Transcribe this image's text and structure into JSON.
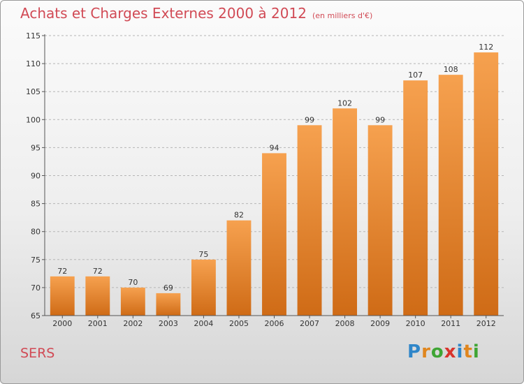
{
  "header": {
    "title": "Achats et Charges Externes 2000 à 2012",
    "subtitle": "(en milliers d'€)"
  },
  "footer": {
    "place": "SERS",
    "logo": {
      "letters": [
        "P",
        "r",
        "o",
        "x",
        "i",
        "t",
        "i"
      ],
      "colors": [
        "#2f86c9",
        "#e0861e",
        "#3fa535",
        "#d8342c",
        "#2f86c9",
        "#e0861e",
        "#3fa535"
      ]
    }
  },
  "colors": {
    "title": "#d14a55",
    "bar_light": "#f6a14f",
    "bar_dark": "#cf6b16",
    "axis": "#555555",
    "grid": "#b5b5b5"
  },
  "chart_data": {
    "type": "bar",
    "title": "Achats et Charges Externes 2000 à 2012",
    "ylabel": "(en milliers d'€)",
    "xlabel": "",
    "categories": [
      "2000",
      "2001",
      "2002",
      "2003",
      "2004",
      "2005",
      "2006",
      "2007",
      "2008",
      "2009",
      "2010",
      "2011",
      "2012"
    ],
    "values": [
      72,
      72,
      70,
      69,
      75,
      82,
      94,
      99,
      102,
      99,
      107,
      108,
      112
    ],
    "ylim": [
      65,
      115
    ],
    "yticks": [
      65,
      70,
      75,
      80,
      85,
      90,
      95,
      100,
      105,
      110,
      115
    ],
    "grid": true
  }
}
